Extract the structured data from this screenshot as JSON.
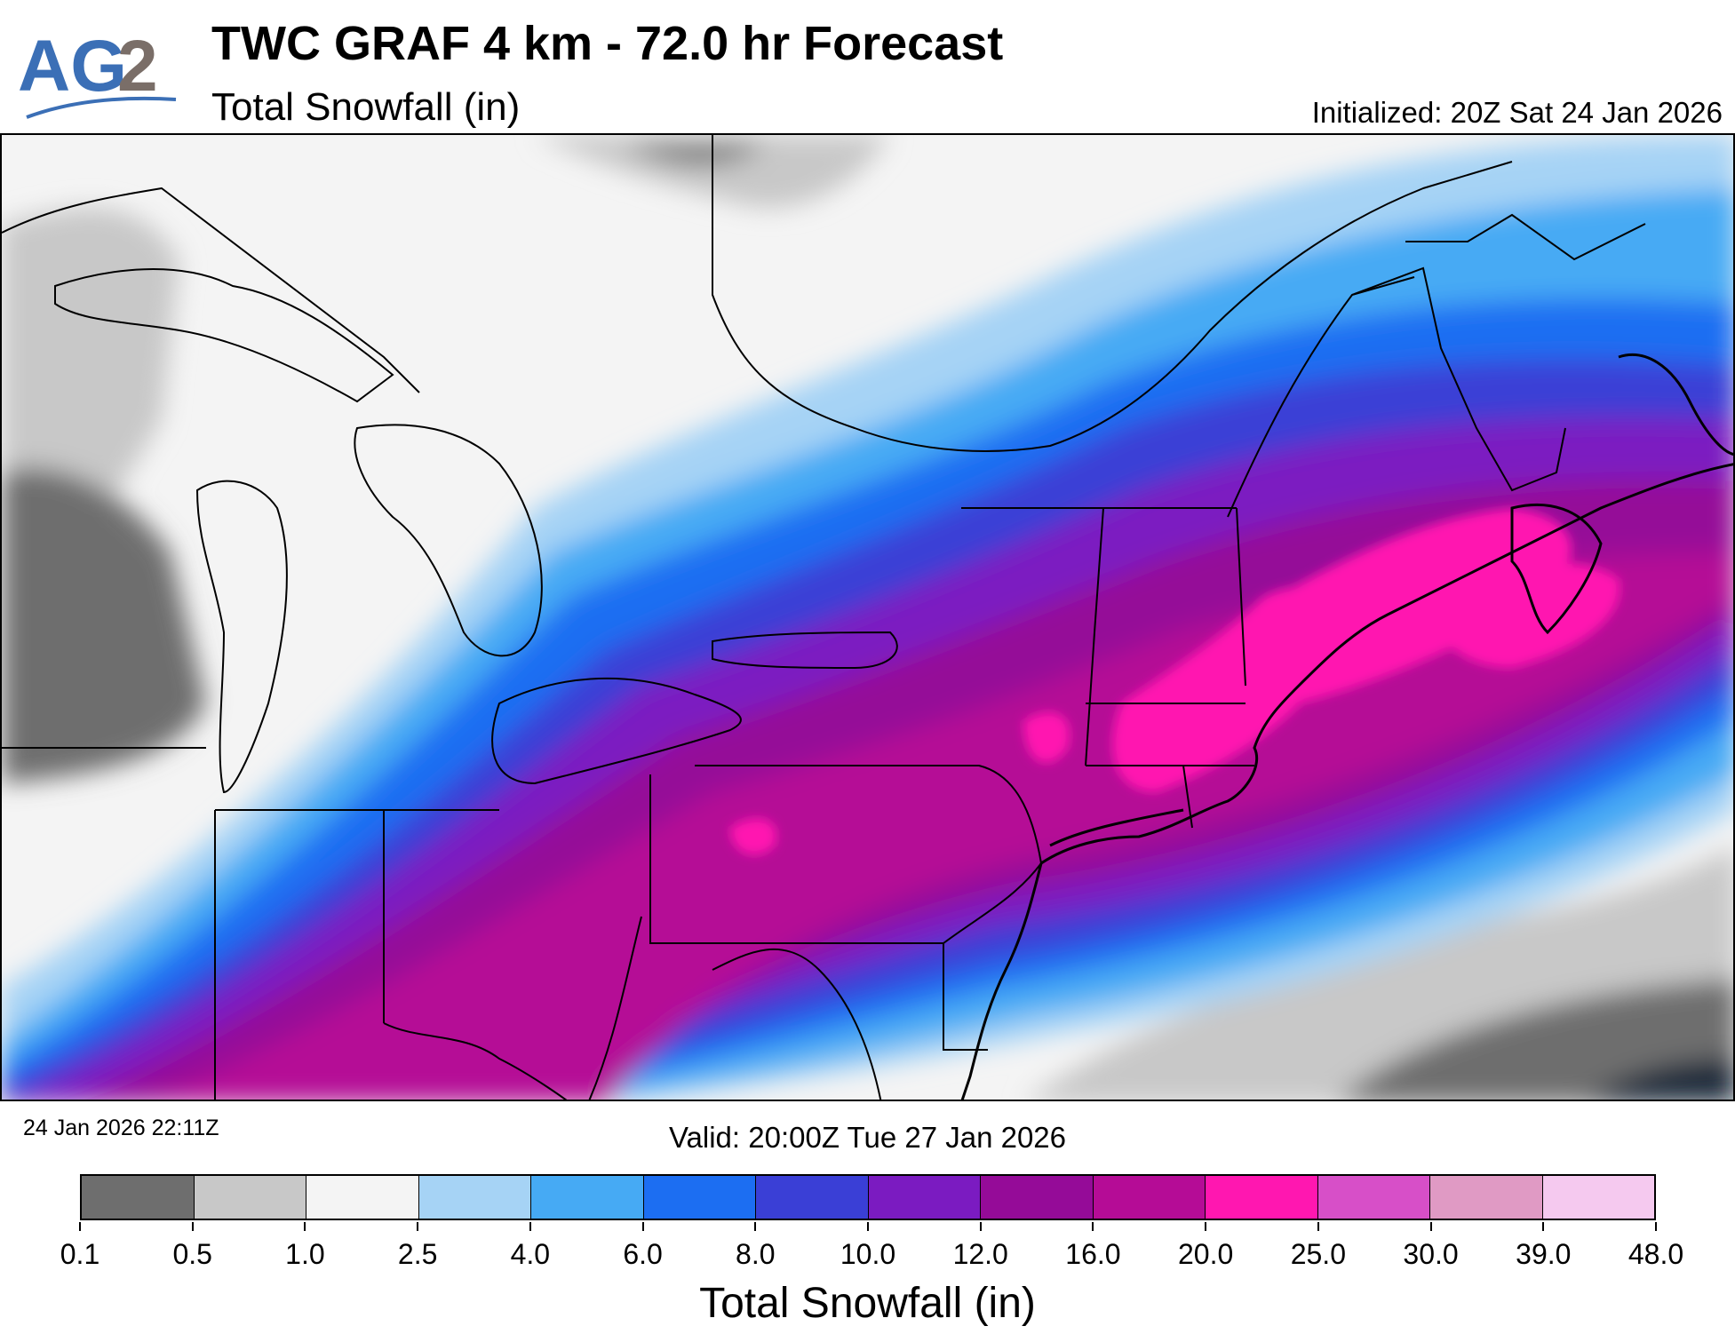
{
  "header": {
    "logo_text": "AG2",
    "title": "TWC GRAF 4 km - 72.0 hr Forecast",
    "subtitle": "Total Snowfall (in)",
    "initialized": "Initialized: 20Z Sat 24 Jan 2026"
  },
  "footer": {
    "created": "24 Jan 2026 22:11Z",
    "valid": "Valid: 20:00Z Tue 27 Jan 2026"
  },
  "colorbar": {
    "label": "Total Snowfall (in)",
    "ticks": [
      "0.1",
      "0.5",
      "1.0",
      "2.5",
      "4.0",
      "6.0",
      "8.0",
      "10.0",
      "12.0",
      "16.0",
      "20.0",
      "25.0",
      "30.0",
      "39.0",
      "48.0"
    ],
    "colors": [
      "#6e6e6e",
      "#c8c8c8",
      "#f4f4f4",
      "#a6d3f5",
      "#46aaf4",
      "#1c6ef2",
      "#3a3fd6",
      "#7b1bc1",
      "#950b98",
      "#b50c96",
      "#ff17b0",
      "#d74fc8",
      "#e09ac4",
      "#f5c9ef"
    ]
  },
  "map": {
    "water_color": "#ffffff",
    "boundary_color": "#000000"
  }
}
